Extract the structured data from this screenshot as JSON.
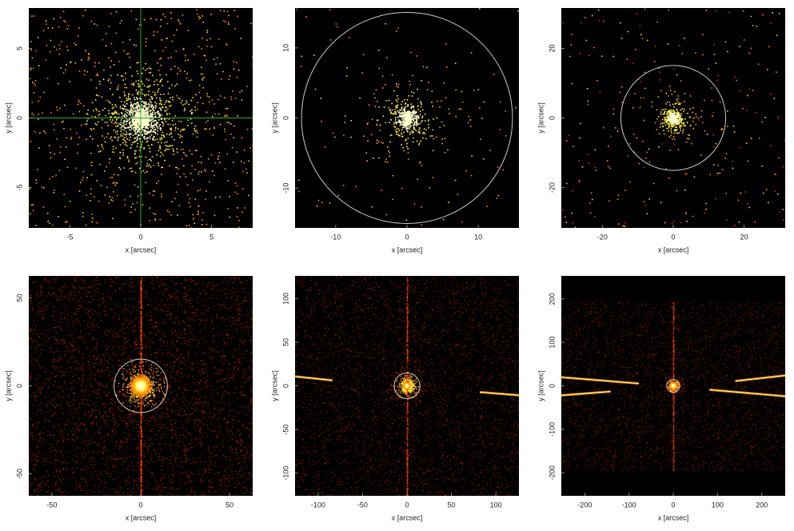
{
  "chart_data": [
    {
      "type": "image",
      "xlabel": "x [arcsec]",
      "ylabel": "y [arcsec]",
      "xlim": [
        -7.9,
        7.9
      ],
      "ylim": [
        -7.9,
        7.9
      ],
      "xticks": [
        -5,
        0,
        5
      ],
      "yticks": [
        -5,
        0,
        5
      ],
      "crosshair": true,
      "crosshair_color": "#33aa33"
    },
    {
      "type": "image",
      "xlabel": "x [arcsec]",
      "ylabel": "y [arcsec]",
      "xlim": [
        -15.7,
        15.7
      ],
      "ylim": [
        -15.7,
        15.7
      ],
      "xticks": [
        -10,
        0,
        10
      ],
      "yticks": [
        -10,
        0,
        10
      ],
      "circle_r": 14.8
    },
    {
      "type": "image",
      "xlabel": "x [arcsec]",
      "ylabel": "y [arcsec]",
      "xlim": [
        -31.6,
        31.6
      ],
      "ylim": [
        -31.6,
        31.6
      ],
      "xticks": [
        -20,
        0,
        20
      ],
      "yticks": [
        -20,
        0,
        20
      ],
      "circle_r": 14.8
    },
    {
      "type": "image",
      "xlabel": "x [arcsec]",
      "ylabel": "y [arcsec]",
      "xlim": [
        -63,
        63
      ],
      "ylim": [
        -62.5,
        62.5
      ],
      "xticks": [
        -50,
        0,
        50
      ],
      "yticks": [
        -50,
        0,
        50
      ],
      "circle_r": 15
    },
    {
      "type": "image",
      "xlabel": "x [arcsec]",
      "ylabel": "y [arcsec]",
      "xlim": [
        -126,
        126
      ],
      "ylim": [
        -126,
        126
      ],
      "xticks": [
        -100,
        -50,
        0,
        50,
        100
      ],
      "yticks": [
        -100,
        -50,
        0,
        50,
        100
      ],
      "circle_r": 14.5
    },
    {
      "type": "image",
      "xlabel": "x [arcsec]",
      "ylabel": "y [arcsec]",
      "xlim": [
        -253,
        253
      ],
      "ylim": [
        -253,
        253
      ],
      "xticks": [
        -200,
        -100,
        0,
        100,
        200
      ],
      "yticks": [
        -200,
        -100,
        0,
        100,
        200
      ],
      "circle_r": 14.5
    }
  ]
}
